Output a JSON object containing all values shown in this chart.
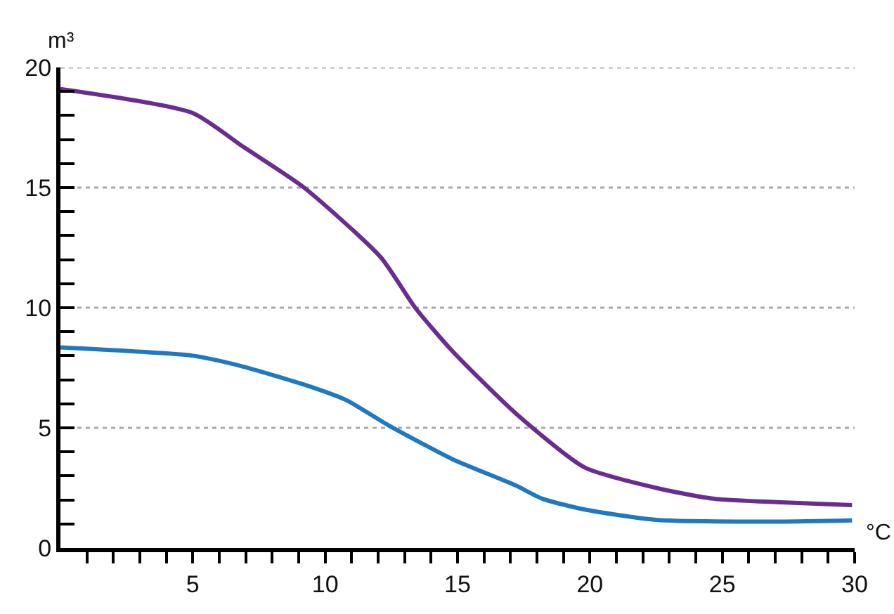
{
  "chart_data": {
    "type": "line",
    "xlabel": "°C",
    "ylabel": "m³",
    "xlim": [
      0,
      30
    ],
    "ylim": [
      0,
      20
    ],
    "xticks": [
      {
        "value": 1,
        "label": null
      },
      {
        "value": 2,
        "label": null
      },
      {
        "value": 3,
        "label": null
      },
      {
        "value": 4,
        "label": null
      },
      5,
      {
        "value": 6,
        "label": null
      },
      {
        "value": 7,
        "label": null
      },
      {
        "value": 8,
        "label": null
      },
      {
        "value": 9,
        "label": null
      },
      10,
      {
        "value": 11,
        "label": null
      },
      {
        "value": 12,
        "label": null
      },
      {
        "value": 13,
        "label": null
      },
      {
        "value": 14,
        "label": null
      },
      15,
      {
        "value": 16,
        "label": null
      },
      {
        "value": 17,
        "label": null
      },
      {
        "value": 18,
        "label": null
      },
      {
        "value": 19,
        "label": null
      },
      20,
      {
        "value": 21,
        "label": null
      },
      {
        "value": 22,
        "label": null
      },
      {
        "value": 23,
        "label": null
      },
      {
        "value": 24,
        "label": null
      },
      25,
      {
        "value": 26,
        "label": null
      },
      {
        "value": 27,
        "label": null
      },
      {
        "value": 28,
        "label": null
      },
      {
        "value": 29,
        "label": null
      },
      30
    ],
    "yticks": [
      0,
      {
        "value": 1,
        "label": null
      },
      {
        "value": 2,
        "label": null
      },
      {
        "value": 3,
        "label": null
      },
      {
        "value": 4,
        "label": null
      },
      5,
      {
        "value": 6,
        "label": null
      },
      {
        "value": 7,
        "label": null
      },
      {
        "value": 8,
        "label": null
      },
      {
        "value": 9,
        "label": null
      },
      10,
      {
        "value": 11,
        "label": null
      },
      {
        "value": 12,
        "label": null
      },
      {
        "value": 13,
        "label": null
      },
      {
        "value": 14,
        "label": null
      },
      15,
      {
        "value": 16,
        "label": null
      },
      {
        "value": 17,
        "label": null
      },
      {
        "value": 18,
        "label": null
      },
      {
        "value": 19,
        "label": null
      },
      20
    ],
    "grid": "y",
    "marker": "none",
    "line_style": "solid",
    "series": [
      {
        "color": "#6a2c91",
        "x": [
          0,
          5,
          6.9,
          9.2,
          12.1,
          13.4,
          14.8,
          17.2,
          19.8,
          22.5,
          24.6,
          27.2,
          29.9
        ],
        "values": [
          19.1,
          18.1,
          16.7,
          15,
          12.1,
          10,
          8.2,
          5.6,
          3.35,
          2.5,
          2.06,
          1.9,
          1.78
        ]
      },
      {
        "color": "#1f78c1",
        "x": [
          0,
          5,
          6.9,
          9.2,
          10.8,
          12.4,
          14.8,
          17.2,
          18.2,
          19.8,
          22.5,
          27.2,
          29.9
        ],
        "values": [
          8.35,
          8.0,
          7.55,
          6.8,
          6.15,
          5.1,
          3.7,
          2.6,
          2.05,
          1.6,
          1.17,
          1.1,
          1.15
        ]
      }
    ]
  }
}
